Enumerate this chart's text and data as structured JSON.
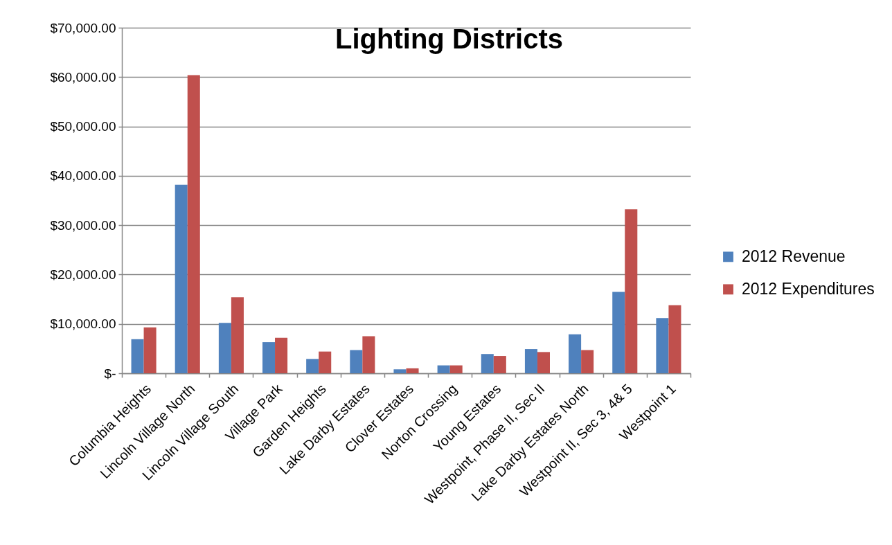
{
  "chart_data": {
    "type": "bar",
    "title": "Lighting Districts",
    "categories": [
      "Columbia Heights",
      "Lincoln Village North",
      "Lincoln Village South",
      "Village Park",
      "Garden Heights",
      "Lake Darby Estates",
      "Clover Estates",
      "Norton Crossing",
      "Young Estates",
      "Westpoint, Phase II, Sec II",
      "Lake Darby Estates North",
      "Westpoint II, Sec 3, 4& 5",
      "Westpoint 1"
    ],
    "series": [
      {
        "name": "2012 Revenue",
        "color": "#4f81bd",
        "values": [
          6900,
          38200,
          10200,
          6300,
          2900,
          4700,
          800,
          1600,
          3900,
          4900,
          7900,
          16500,
          11200
        ]
      },
      {
        "name": "2012 Expenditures",
        "color": "#c0504d",
        "values": [
          9300,
          60400,
          15400,
          7200,
          4400,
          7500,
          1000,
          1600,
          3500,
          4300,
          4700,
          33200,
          13800
        ]
      }
    ],
    "ylim": [
      0,
      70000
    ],
    "yticks": [
      {
        "value": 0,
        "label": "$-"
      },
      {
        "value": 10000,
        "label": "$10,000.00"
      },
      {
        "value": 20000,
        "label": "$20,000.00"
      },
      {
        "value": 30000,
        "label": "$30,000.00"
      },
      {
        "value": 40000,
        "label": "$40,000.00"
      },
      {
        "value": 50000,
        "label": "$50,000.00"
      },
      {
        "value": 60000,
        "label": "$60,000.00"
      },
      {
        "value": 70000,
        "label": "$70,000.00"
      }
    ],
    "grid": "y",
    "legend": "right"
  }
}
